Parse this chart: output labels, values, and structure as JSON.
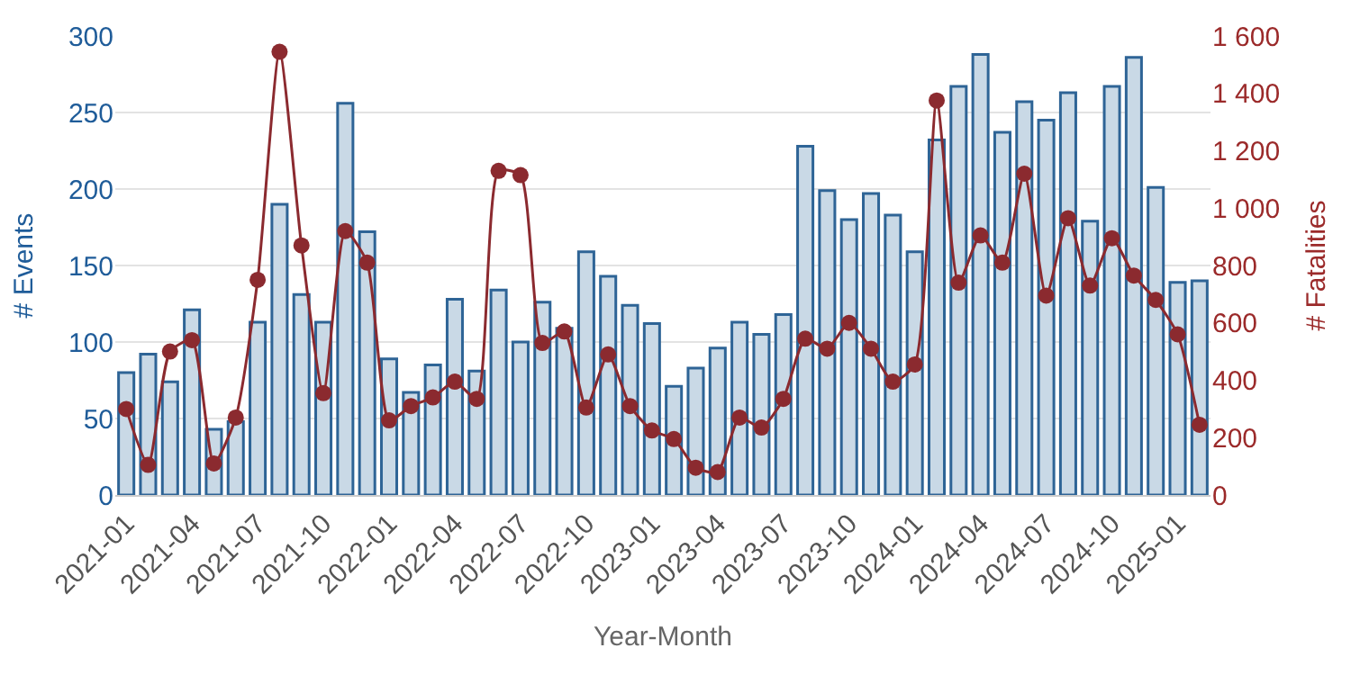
{
  "chart_data": {
    "type": "bar",
    "xlabel": "Year-Month",
    "ylabel": "# Events",
    "y2label": "# Fatalities",
    "categories": [
      "2021-01",
      null,
      null,
      "2021-04",
      null,
      null,
      "2021-07",
      null,
      null,
      "2021-10",
      null,
      null,
      "2022-01",
      null,
      null,
      "2022-04",
      null,
      null,
      "2022-07",
      null,
      null,
      "2022-10",
      null,
      null,
      "2023-01",
      null,
      null,
      "2023-04",
      null,
      null,
      "2023-07",
      null,
      null,
      "2023-10",
      null,
      null,
      "2024-01",
      null,
      null,
      "2024-04",
      null,
      null,
      "2024-07",
      null,
      null,
      "2024-10",
      null,
      null,
      "2025-01",
      null
    ],
    "series": [
      {
        "name": null,
        "color": "#c9d9e6",
        "values": [
          80,
          92,
          74,
          121,
          43,
          48,
          113,
          190,
          131,
          113,
          256,
          172,
          89,
          67,
          85,
          128,
          81,
          134,
          100,
          126,
          109,
          159,
          143,
          124,
          112,
          71,
          83,
          96,
          113,
          105,
          118,
          228,
          199,
          180,
          197,
          183,
          159,
          232,
          267,
          288,
          237,
          257,
          245,
          263,
          179,
          267,
          286,
          201,
          139,
          140
        ]
      },
      {
        "name": null,
        "type": "line",
        "axis": "y2",
        "color": "#8b2a2f",
        "marker": "circle",
        "line_style": "solid",
        "values": [
          300,
          105,
          500,
          540,
          110,
          270,
          750,
          1545,
          870,
          355,
          920,
          810,
          260,
          310,
          340,
          395,
          335,
          1130,
          1115,
          530,
          570,
          305,
          490,
          310,
          225,
          195,
          95,
          80,
          270,
          235,
          335,
          545,
          510,
          600,
          510,
          395,
          455,
          1375,
          740,
          905,
          810,
          1120,
          695,
          965,
          730,
          895,
          765,
          680,
          560,
          245
        ]
      }
    ],
    "ylim": [
      0,
      300
    ],
    "yticks": [
      0,
      50,
      100,
      150,
      200,
      250,
      300
    ],
    "y2lim": [
      0,
      1600
    ],
    "y2ticks": [
      0,
      200,
      400,
      600,
      800,
      {
        "value": 1000,
        "label": "1 000"
      },
      {
        "value": 1200,
        "label": "1 200"
      },
      {
        "value": 1400,
        "label": "1 400"
      },
      {
        "value": 1600,
        "label": "1 600"
      }
    ],
    "grid": "y",
    "legend": false
  }
}
